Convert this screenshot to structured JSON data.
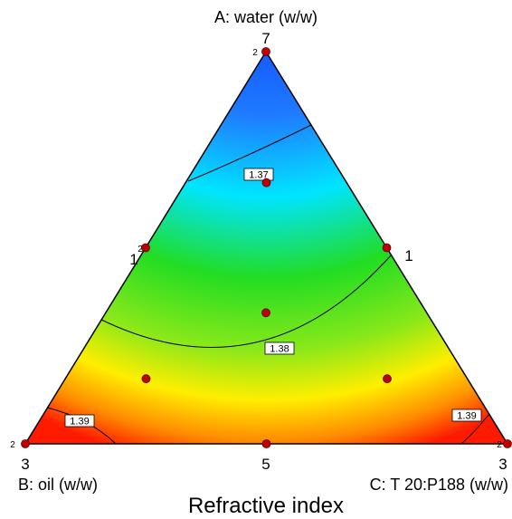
{
  "chart_data": {
    "type": "ternary contour",
    "title": "Refractive index",
    "vertices": {
      "top": {
        "label": "A: water (w/w)",
        "value": "7",
        "replicates": "2"
      },
      "bottom_left": {
        "label": "B: oil (w/w)",
        "value": "3",
        "replicates": "2"
      },
      "bottom_right": {
        "label": "C:  T 20:P188 (w/w)",
        "value": "3",
        "replicates": "2"
      }
    },
    "edge_labels": {
      "left": {
        "value": "1",
        "replicates": "2"
      },
      "right": {
        "value": "1"
      },
      "bottom": {
        "value": "5"
      }
    },
    "contour_levels": [
      {
        "level": "1.37"
      },
      {
        "level": "1.38"
      },
      {
        "level": "1.39"
      }
    ],
    "design_points": [
      {
        "a": 1.0,
        "b": 0.0,
        "c": 0.0,
        "replicates": 2
      },
      {
        "a": 0.0,
        "b": 1.0,
        "c": 0.0,
        "replicates": 2
      },
      {
        "a": 0.0,
        "b": 0.0,
        "c": 1.0,
        "replicates": 2
      },
      {
        "a": 0.5,
        "b": 0.5,
        "c": 0.0,
        "replicates": 2
      },
      {
        "a": 0.5,
        "b": 0.0,
        "c": 0.5
      },
      {
        "a": 0.0,
        "b": 0.5,
        "c": 0.5
      },
      {
        "a": 0.333,
        "b": 0.333,
        "c": 0.333
      },
      {
        "a": 0.667,
        "b": 0.167,
        "c": 0.167
      },
      {
        "a": 0.167,
        "b": 0.667,
        "c": 0.167
      },
      {
        "a": 0.167,
        "b": 0.167,
        "c": 0.667
      }
    ],
    "color_scale": [
      "#0b2fff",
      "#00e5ff",
      "#22dd22",
      "#ffee00",
      "#ff1a00"
    ]
  }
}
